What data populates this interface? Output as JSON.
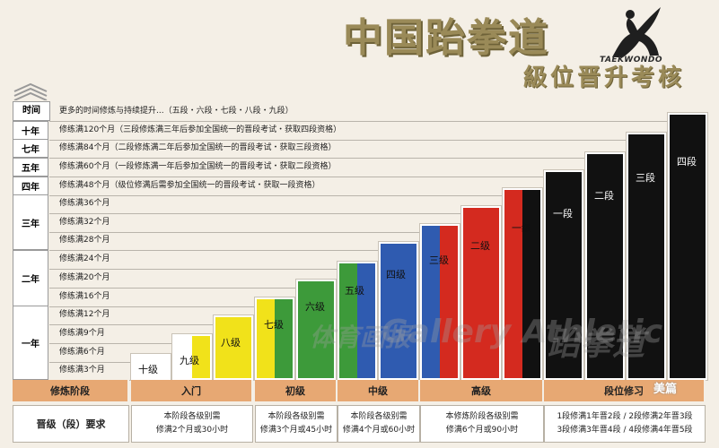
{
  "title": {
    "main": "中国跆拳道",
    "sub": "級位晋升考核",
    "logo_text": "TAEKWONDO"
  },
  "time_column": {
    "header": "时间",
    "cells": [
      "十年",
      "七年",
      "五年",
      "四年",
      "三年",
      "二年",
      "一年"
    ]
  },
  "rows": [
    "更多的时间修炼与持续提升...（五段・六段・七段・八段・九段）",
    "修练满120个月（三段修炼满三年后参加全国统一的晋段考试・获取四段资格）",
    "修练满84个月（二段修炼满二年后参加全国统一的晋段考试・获取三段资格）",
    "修练满60个月（一段修炼满一年后参加全国统一的晋段考试・获取二段资格）",
    "修练满48个月（级位修满后需参加全国统一的晋段考试・获取一段资格）",
    "修练满36个月",
    "修练满32个月",
    "修练满28个月",
    "修练满24个月",
    "修练满20个月",
    "修练满16个月",
    "修练满12个月",
    "修练满9个月",
    "修练满6个月",
    "修练满3个月"
  ],
  "bars": [
    {
      "label": "十级",
      "colors": [
        "#ffffff"
      ]
    },
    {
      "label": "九级",
      "colors": [
        "#ffffff",
        "#f1e21a"
      ]
    },
    {
      "label": "八级",
      "colors": [
        "#f1e21a"
      ]
    },
    {
      "label": "七级",
      "colors": [
        "#f1e21a",
        "#3d9a3a"
      ]
    },
    {
      "label": "六级",
      "colors": [
        "#3d9a3a"
      ]
    },
    {
      "label": "五级",
      "colors": [
        "#3d9a3a",
        "#2f5bb0"
      ]
    },
    {
      "label": "四级",
      "colors": [
        "#2f5bb0"
      ]
    },
    {
      "label": "三级",
      "colors": [
        "#2f5bb0",
        "#d42a1f"
      ]
    },
    {
      "label": "二级",
      "colors": [
        "#d42a1f"
      ]
    },
    {
      "label": "一级",
      "colors": [
        "#d42a1f",
        "#111111"
      ]
    },
    {
      "label": "一段",
      "colors": [
        "#111111"
      ]
    },
    {
      "label": "二段",
      "colors": [
        "#111111"
      ]
    },
    {
      "label": "三段",
      "colors": [
        "#111111"
      ]
    },
    {
      "label": "四段",
      "colors": [
        "#111111"
      ]
    }
  ],
  "stages": {
    "header": "修炼阶段",
    "items": [
      "入门",
      "初级",
      "中级",
      "高级",
      "段位修习"
    ]
  },
  "requirements": {
    "header": "晋级（段）要求",
    "items": [
      {
        "line1": "本阶段各级别需",
        "line2": "修满2个月或30小时"
      },
      {
        "line1": "本阶段各级别需",
        "line2": "修满3个月或45小时"
      },
      {
        "line1": "本阶段各级别需",
        "line2": "修满4个月或60小时"
      },
      {
        "line1": "本修炼阶段各级别需",
        "line2": "修满6个月或90小时"
      },
      {
        "line1": "1段修满1年晋2段 / 2段修满2年晋3段",
        "line2": "3段修满3年晋4段 / 4段修满4年晋5段"
      }
    ]
  },
  "watermarks": {
    "cn": "体育画报",
    "en": "Gallery Athletic",
    "tkd": "跆拳道",
    "meipian": "美篇"
  }
}
